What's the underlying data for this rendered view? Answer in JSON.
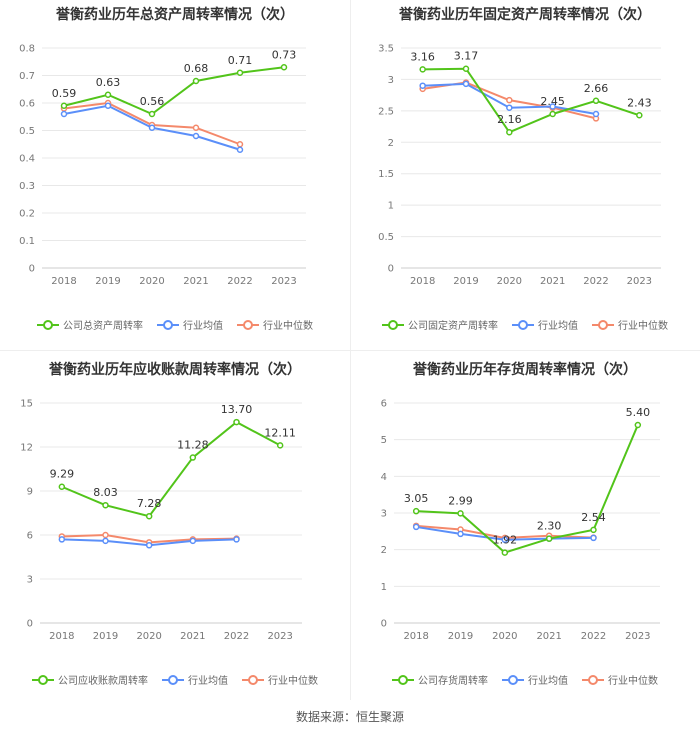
{
  "source": "数据来源：恒生聚源",
  "colors": {
    "company": "#52c41a",
    "average": "#5b8ff9",
    "median": "#f4896b",
    "grid": "#e8e8e8"
  },
  "chart_data": [
    {
      "type": "line",
      "title": "誉衡药业历年总资产周转率情况（次）",
      "categories": [
        "2018",
        "2019",
        "2020",
        "2021",
        "2022",
        "2023"
      ],
      "ylim": [
        0,
        0.8
      ],
      "yticks": [
        "0",
        "0.1",
        "0.2",
        "0.3",
        "0.4",
        "0.5",
        "0.6",
        "0.7",
        "0.8"
      ],
      "series": [
        {
          "name": "公司总资产周转率",
          "role": "company",
          "values": [
            0.59,
            0.63,
            0.56,
            0.68,
            0.71,
            0.73
          ],
          "labels": [
            "0.59",
            "0.63",
            "0.56",
            "0.68",
            "0.71",
            "0.73"
          ]
        },
        {
          "name": "行业均值",
          "role": "average",
          "values": [
            0.56,
            0.59,
            0.51,
            0.48,
            0.43,
            null
          ]
        },
        {
          "name": "行业中位数",
          "role": "median",
          "values": [
            0.58,
            0.6,
            0.52,
            0.51,
            0.45,
            null
          ]
        }
      ]
    },
    {
      "type": "line",
      "title": "誉衡药业历年固定资产周转率情况（次）",
      "categories": [
        "2018",
        "2019",
        "2020",
        "2021",
        "2022",
        "2023"
      ],
      "ylim": [
        0,
        3.5
      ],
      "yticks": [
        "0",
        "0.5",
        "1",
        "1.5",
        "2",
        "2.5",
        "3",
        "3.5"
      ],
      "series": [
        {
          "name": "公司固定资产周转率",
          "role": "company",
          "values": [
            3.16,
            3.17,
            2.16,
            2.45,
            2.66,
            2.43
          ],
          "labels": [
            "3.16",
            "3.17",
            "2.16",
            "2.45",
            "2.66",
            "2.43"
          ]
        },
        {
          "name": "行业均值",
          "role": "average",
          "values": [
            2.9,
            2.93,
            2.55,
            2.57,
            2.45,
            null
          ]
        },
        {
          "name": "行业中位数",
          "role": "median",
          "values": [
            2.85,
            2.95,
            2.67,
            2.55,
            2.38,
            null
          ]
        }
      ]
    },
    {
      "type": "line",
      "title": "誉衡药业历年应收账款周转率情况（次）",
      "categories": [
        "2018",
        "2019",
        "2020",
        "2021",
        "2022",
        "2023"
      ],
      "ylim": [
        0,
        15
      ],
      "yticks": [
        "0",
        "3",
        "6",
        "9",
        "12",
        "15"
      ],
      "series": [
        {
          "name": "公司应收账款周转率",
          "role": "company",
          "values": [
            9.29,
            8.03,
            7.28,
            11.28,
            13.7,
            12.11
          ],
          "labels": [
            "9.29",
            "8.03",
            "7.28",
            "11.28",
            "13.70",
            "12.11"
          ]
        },
        {
          "name": "行业均值",
          "role": "average",
          "values": [
            5.7,
            5.6,
            5.3,
            5.6,
            5.7,
            null
          ]
        },
        {
          "name": "行业中位数",
          "role": "median",
          "values": [
            5.9,
            6.0,
            5.5,
            5.7,
            5.75,
            null
          ]
        }
      ]
    },
    {
      "type": "line",
      "title": "誉衡药业历年存货周转率情况（次）",
      "categories": [
        "2018",
        "2019",
        "2020",
        "2021",
        "2022",
        "2023"
      ],
      "ylim": [
        0,
        6
      ],
      "yticks": [
        "0",
        "1",
        "2",
        "3",
        "4",
        "5",
        "6"
      ],
      "series": [
        {
          "name": "公司存货周转率",
          "role": "company",
          "values": [
            3.05,
            2.99,
            1.92,
            2.3,
            2.54,
            5.4
          ],
          "labels": [
            "3.05",
            "2.99",
            "1.92",
            "2.30",
            "2.54",
            "5.40"
          ]
        },
        {
          "name": "行业均值",
          "role": "average",
          "values": [
            2.62,
            2.43,
            2.27,
            2.3,
            2.32,
            null
          ]
        },
        {
          "name": "行业中位数",
          "role": "median",
          "values": [
            2.65,
            2.55,
            2.32,
            2.38,
            2.33,
            null
          ]
        }
      ]
    }
  ]
}
